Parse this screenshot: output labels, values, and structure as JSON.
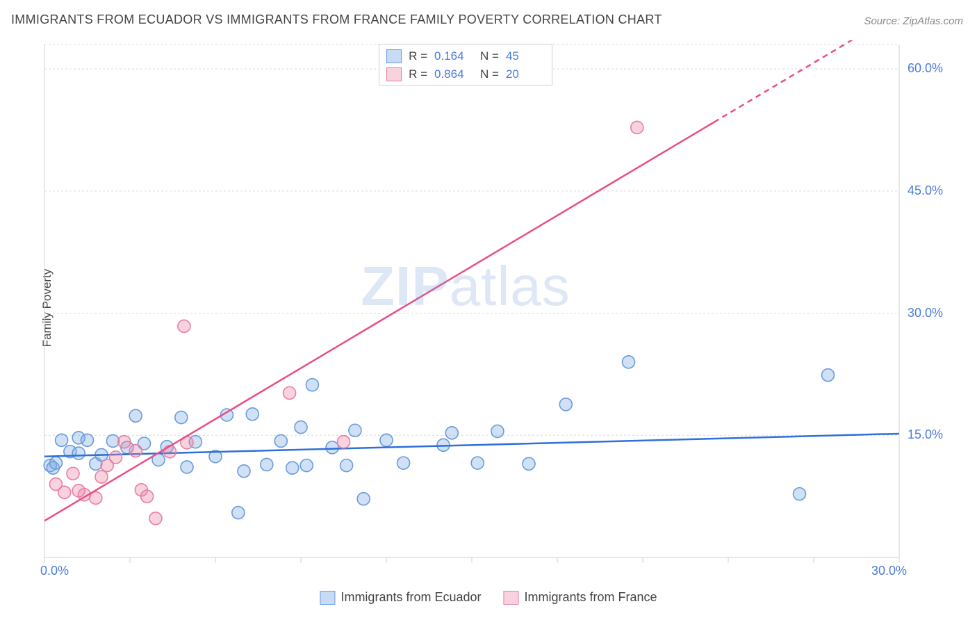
{
  "title": "IMMIGRANTS FROM ECUADOR VS IMMIGRANTS FROM FRANCE FAMILY POVERTY CORRELATION CHART",
  "source_text": "Source: ZipAtlas.com",
  "y_axis_label": "Family Poverty",
  "watermark_prefix": "ZIP",
  "watermark_suffix": "atlas",
  "chart": {
    "type": "scatter",
    "background_color": "#ffffff",
    "grid_color": "#d8d8d8",
    "axis_color": "#d0d0d0",
    "tick_label_color": "#4b7bdc",
    "xlim": [
      0,
      30
    ],
    "ylim": [
      0,
      63
    ],
    "xticks": [
      0,
      3,
      6,
      9,
      12,
      15,
      18,
      21,
      24,
      27,
      30
    ],
    "xtick_labels_shown": {
      "0": "0.0%",
      "30": "30.0%"
    },
    "yticks": [
      15,
      30,
      45,
      60
    ],
    "ytick_labels": [
      "15.0%",
      "30.0%",
      "45.0%",
      "60.0%"
    ],
    "marker_radius": 9,
    "marker_stroke_width": 1.6,
    "series": [
      {
        "name": "Immigrants from Ecuador",
        "legend_swatch_fill": "#c7dbf5",
        "legend_swatch_stroke": "#6a9bdc",
        "point_fill": "rgba(120,170,230,0.35)",
        "point_stroke": "#6a9bdc",
        "trendline_color": "#2e6fd8",
        "trendline_width": 2.5,
        "R_label": "R =",
        "R": "0.164",
        "N_label": "N =",
        "N": "45",
        "trendline_y_at_x0": 12.4,
        "trendline_y_at_x30": 15.2,
        "points": [
          [
            0.2,
            11.3
          ],
          [
            0.3,
            11.0
          ],
          [
            0.4,
            11.6
          ],
          [
            0.6,
            14.4
          ],
          [
            0.9,
            13.0
          ],
          [
            1.2,
            14.7
          ],
          [
            1.2,
            12.8
          ],
          [
            1.5,
            14.4
          ],
          [
            1.8,
            11.5
          ],
          [
            2.0,
            12.6
          ],
          [
            2.4,
            14.3
          ],
          [
            2.9,
            13.5
          ],
          [
            3.2,
            17.4
          ],
          [
            3.5,
            14.0
          ],
          [
            4.0,
            12.0
          ],
          [
            4.3,
            13.6
          ],
          [
            4.8,
            17.2
          ],
          [
            5.0,
            11.1
          ],
          [
            5.3,
            14.2
          ],
          [
            6.0,
            12.4
          ],
          [
            6.4,
            17.5
          ],
          [
            6.8,
            5.5
          ],
          [
            7.0,
            10.6
          ],
          [
            7.3,
            17.6
          ],
          [
            7.8,
            11.4
          ],
          [
            8.3,
            14.3
          ],
          [
            8.7,
            11.0
          ],
          [
            9.0,
            16.0
          ],
          [
            9.2,
            11.3
          ],
          [
            9.4,
            21.2
          ],
          [
            10.1,
            13.5
          ],
          [
            10.6,
            11.3
          ],
          [
            10.9,
            15.6
          ],
          [
            11.2,
            7.2
          ],
          [
            12.0,
            14.4
          ],
          [
            12.6,
            11.6
          ],
          [
            14.0,
            13.8
          ],
          [
            14.3,
            15.3
          ],
          [
            15.2,
            11.6
          ],
          [
            15.9,
            15.5
          ],
          [
            17.0,
            11.5
          ],
          [
            18.3,
            18.8
          ],
          [
            26.5,
            7.8
          ],
          [
            27.5,
            22.4
          ],
          [
            20.5,
            24.0
          ]
        ]
      },
      {
        "name": "Immigrants from France",
        "legend_swatch_fill": "#f8d2dd",
        "legend_swatch_stroke": "#e87ea2",
        "point_fill": "rgba(235,130,160,0.35)",
        "point_stroke": "#e87ea2",
        "trendline_color": "#ea4d86",
        "trendline_width": 2.5,
        "R_label": "R =",
        "R": "0.864",
        "N_label": "N =",
        "N": "20",
        "trendline_y_at_x0": 4.5,
        "trendline_y_at_x30": 67.0,
        "trendline_dash_after_x": 23.5,
        "points": [
          [
            0.4,
            9.0
          ],
          [
            0.7,
            8.0
          ],
          [
            1.0,
            10.3
          ],
          [
            1.2,
            8.2
          ],
          [
            1.4,
            7.7
          ],
          [
            1.8,
            7.3
          ],
          [
            2.0,
            9.9
          ],
          [
            2.2,
            11.3
          ],
          [
            2.5,
            12.3
          ],
          [
            2.8,
            14.2
          ],
          [
            3.2,
            13.1
          ],
          [
            3.4,
            8.3
          ],
          [
            3.6,
            7.5
          ],
          [
            3.9,
            4.8
          ],
          [
            4.4,
            13.0
          ],
          [
            4.9,
            28.4
          ],
          [
            5.0,
            14.1
          ],
          [
            8.6,
            20.2
          ],
          [
            10.5,
            14.2
          ],
          [
            20.8,
            52.8
          ]
        ]
      }
    ]
  },
  "bottom_legend": [
    {
      "swatch_fill": "#c7dbf5",
      "swatch_stroke": "#6a9bdc",
      "label": "Immigrants from Ecuador"
    },
    {
      "swatch_fill": "#f8d2dd",
      "swatch_stroke": "#e87ea2",
      "label": "Immigrants from France"
    }
  ]
}
